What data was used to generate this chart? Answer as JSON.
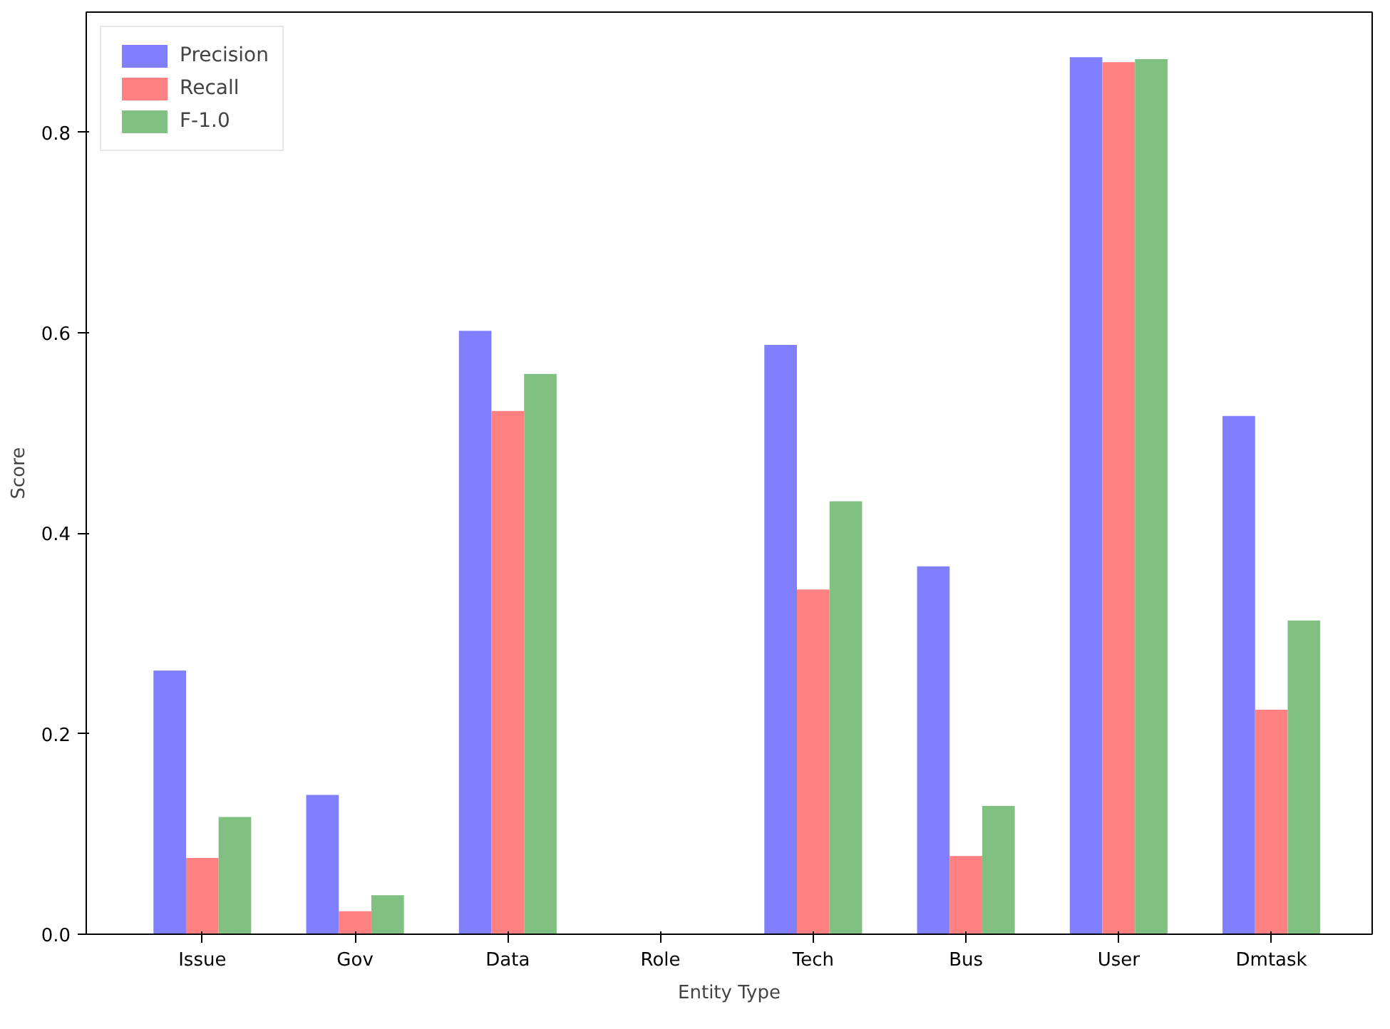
{
  "chart_data": {
    "type": "bar",
    "xlabel": "Entity Type",
    "ylabel": "Score",
    "categories": [
      "Issue",
      "Gov",
      "Data",
      "Role",
      "Tech",
      "Bus",
      "User",
      "Dmtask"
    ],
    "series": [
      {
        "name": "Precision",
        "color": "#8080ff",
        "values": [
          0.263,
          0.139,
          0.602,
          0,
          0.588,
          0.367,
          0.875,
          0.517
        ]
      },
      {
        "name": "Recall",
        "color": "#ff8080",
        "values": [
          0.076,
          0.023,
          0.522,
          0,
          0.344,
          0.078,
          0.87,
          0.224
        ]
      },
      {
        "name": "F-1.0",
        "color": "#80c080",
        "values": [
          0.117,
          0.039,
          0.559,
          0,
          0.432,
          0.128,
          0.873,
          0.313
        ]
      }
    ],
    "ylim": [
      0,
      0.92
    ],
    "yticks": [
      {
        "value": 0,
        "label": "0.0"
      },
      0.2,
      0.4,
      0.6,
      0.8
    ],
    "legend": "top left"
  }
}
